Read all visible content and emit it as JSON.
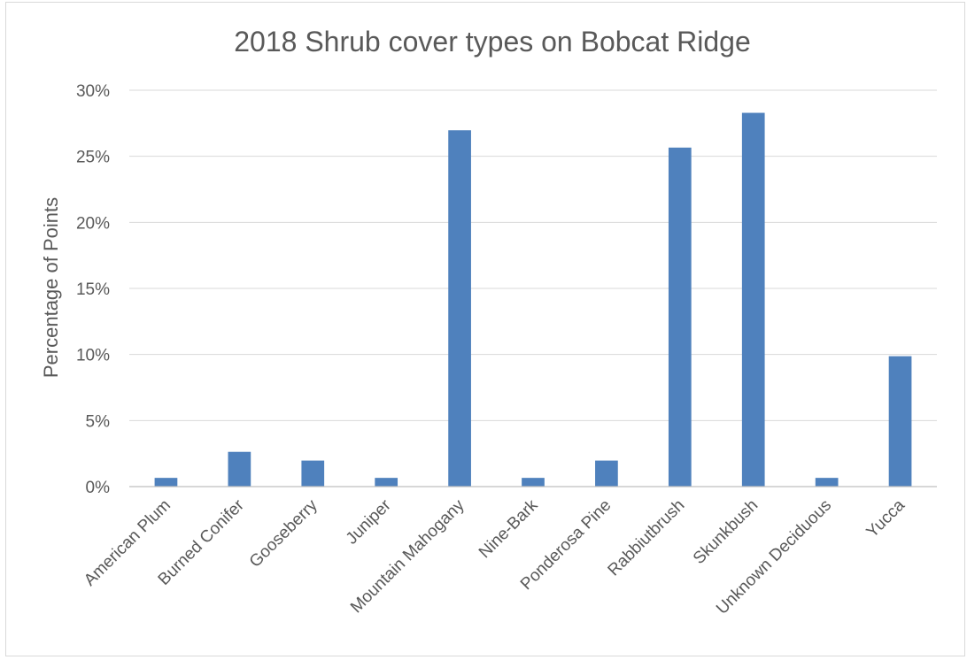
{
  "chart_data": {
    "type": "bar",
    "title": "2018 Shrub cover types on Bobcat Ridge",
    "xlabel": "",
    "ylabel": "Percentage of Points",
    "categories": [
      "American Plum",
      "Burned Conifer",
      "Gooseberry",
      "Juniper",
      "Mountain Mahogany",
      "Nine-Bark",
      "Ponderosa Pine",
      "Rabbiutbrush",
      "Skunkbush",
      "Unknown Deciduous",
      "Yucca"
    ],
    "values": [
      0.66,
      2.63,
      1.97,
      0.66,
      26.97,
      0.66,
      1.97,
      25.66,
      28.29,
      0.66,
      9.87
    ],
    "ylim": [
      0,
      30
    ],
    "yticks": [
      0,
      5,
      10,
      15,
      20,
      25,
      30
    ],
    "ytick_labels": [
      "0%",
      "5%",
      "10%",
      "15%",
      "20%",
      "25%",
      "30%"
    ],
    "grid": true,
    "bar_color": "#4f81bd"
  }
}
